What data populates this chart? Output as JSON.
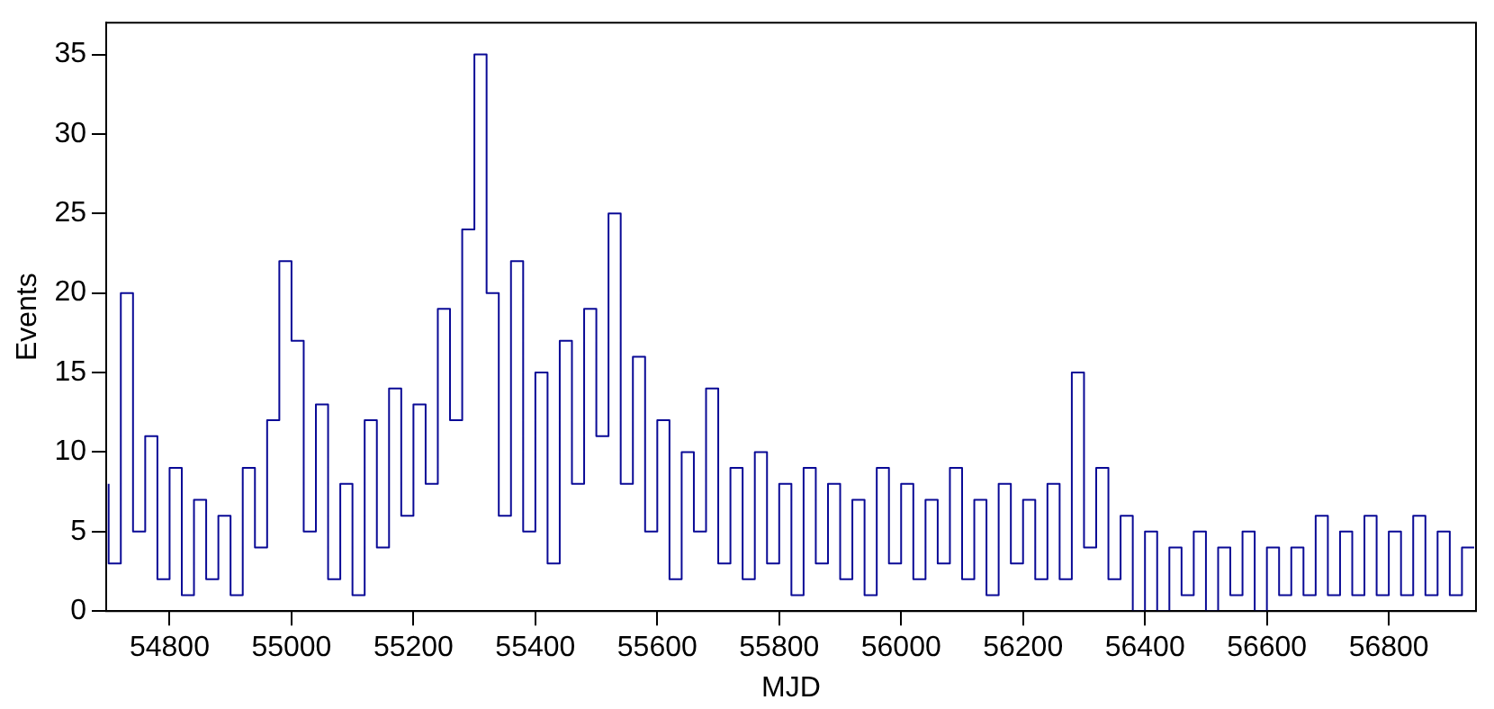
{
  "chart_data": {
    "type": "step",
    "xlabel": "MJD",
    "ylabel": "Events",
    "xlim": [
      54696,
      56943
    ],
    "ylim": [
      0,
      37
    ],
    "xticks": [
      54800,
      55000,
      55200,
      55400,
      55600,
      55800,
      56000,
      56200,
      56400,
      56600,
      56800
    ],
    "yticks": [
      0,
      5,
      10,
      15,
      20,
      25,
      30,
      35
    ],
    "grid": false,
    "legend": false,
    "marker": "none",
    "line_style": "solid",
    "series": [
      {
        "color": "#0a0a96",
        "x": [
          54700,
          54720,
          54740,
          54760,
          54780,
          54800,
          54820,
          54840,
          54860,
          54880,
          54900,
          54920,
          54940,
          54960,
          54980,
          55000,
          55020,
          55040,
          55060,
          55080,
          55100,
          55120,
          55140,
          55160,
          55180,
          55200,
          55220,
          55240,
          55260,
          55280,
          55300,
          55320,
          55340,
          55360,
          55380,
          55400,
          55420,
          55440,
          55460,
          55480,
          55500,
          55520,
          55540,
          55560,
          55580,
          55600,
          55620,
          55640,
          55660,
          55680,
          55700,
          55720,
          55740,
          55760,
          55780,
          55800,
          55820,
          55840,
          55860,
          55880,
          55900,
          55920,
          55940,
          55960,
          55980,
          56000,
          56020,
          56040,
          56060,
          56080,
          56100,
          56120,
          56140,
          56160,
          56180,
          56200,
          56220,
          56240,
          56260,
          56280,
          56300,
          56320,
          56340,
          56360,
          56380,
          56400,
          56420,
          56440,
          56460,
          56480,
          56500,
          56520,
          56540,
          56560,
          56580,
          56600,
          56620,
          56640,
          56660,
          56680,
          56700,
          56720,
          56740,
          56760,
          56780,
          56800,
          56820,
          56840,
          56860,
          56880,
          56900,
          56920,
          56940
        ],
        "values": [
          8,
          3,
          20,
          5,
          11,
          2,
          9,
          1,
          7,
          2,
          6,
          1,
          9,
          4,
          12,
          22,
          17,
          5,
          13,
          2,
          8,
          1,
          12,
          4,
          14,
          6,
          13,
          8,
          19,
          12,
          24,
          35,
          20,
          6,
          22,
          5,
          15,
          3,
          17,
          8,
          19,
          11,
          25,
          8,
          16,
          5,
          12,
          2,
          10,
          5,
          14,
          3,
          9,
          2,
          10,
          3,
          8,
          1,
          9,
          3,
          8,
          2,
          7,
          1,
          9,
          3,
          8,
          2,
          7,
          3,
          9,
          2,
          7,
          1,
          8,
          3,
          7,
          2,
          8,
          2,
          15,
          4,
          9,
          2,
          6,
          0,
          5,
          0,
          4,
          1,
          5,
          0,
          4,
          1,
          5,
          0,
          4,
          1,
          4,
          1,
          6,
          1,
          5,
          1,
          6,
          1,
          5,
          1,
          6,
          1,
          5,
          1,
          4
        ]
      }
    ]
  }
}
